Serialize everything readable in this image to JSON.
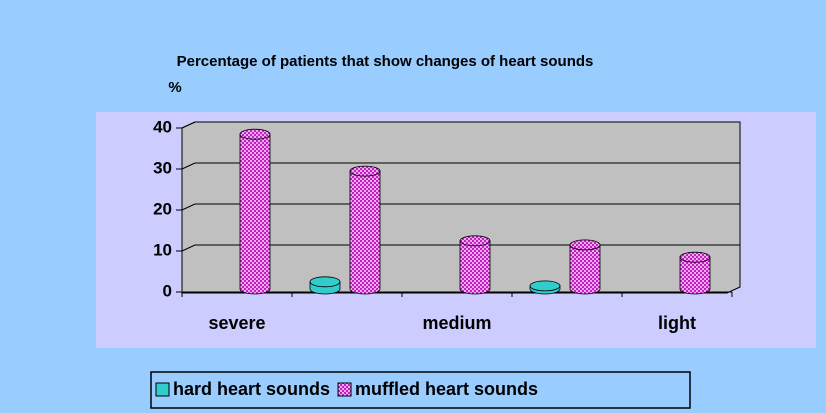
{
  "chart_data": {
    "type": "bar3d",
    "title": "Percentage of patients that show changes of heart sounds",
    "ylabel": "%",
    "categories": [
      "severe",
      null,
      "medium",
      null,
      "light"
    ],
    "series": [
      {
        "name": "hard heart sounds",
        "color": "#33cccc",
        "values": [
          null,
          2,
          null,
          1,
          null
        ]
      },
      {
        "name": "muffled heart sounds",
        "color": "#cc33cc",
        "values": [
          38,
          29,
          12,
          11,
          8
        ]
      }
    ],
    "ylim": [
      0,
      40
    ],
    "yticks": [
      0,
      10,
      20,
      30,
      40
    ],
    "grid": true
  }
}
